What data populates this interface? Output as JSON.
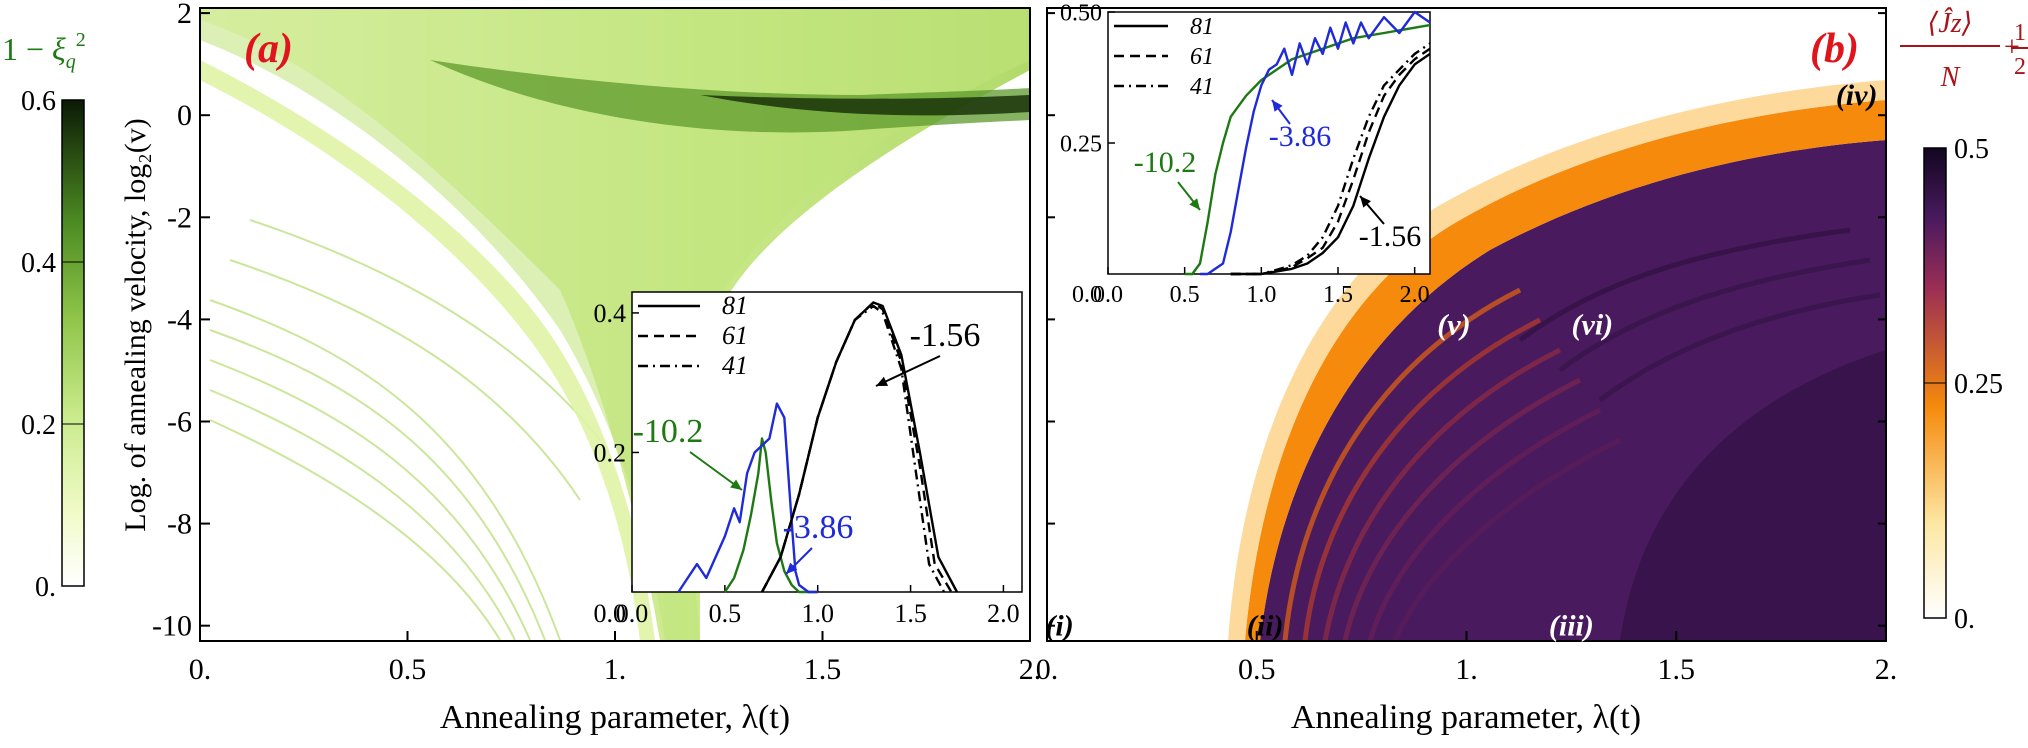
{
  "colors": {
    "green_dark": "#0b1a05",
    "green_mid": "#7ab43a",
    "green_light": "#eef9c6",
    "inferno_dark": "#1b0a2e",
    "inferno_purple": "#4a1a5e",
    "inferno_orange": "#f58a0c",
    "inferno_light": "#fff5d6",
    "panel_label": "#e0141c",
    "blue_curve": "#1f2ad8",
    "green_curve": "#1d7a12",
    "dark_red_label": "#a8141a"
  },
  "chart_data": [
    {
      "panel": "a",
      "type": "heatmap",
      "panel_label": "(a)",
      "xlabel": "Annealing parameter, λ(t)",
      "ylabel": "Log. of annealing velocity, log₂(v)",
      "xlim": [
        0,
        2
      ],
      "ylim": [
        -10.3,
        2.1
      ],
      "x_ticks": [
        0,
        0.5,
        1,
        1.5,
        2
      ],
      "x_tick_labels": [
        "0.",
        "0.5",
        "1.",
        "1.5",
        "2."
      ],
      "y_ticks": [
        -10,
        -8,
        -6,
        -4,
        -2,
        0,
        2
      ],
      "y_tick_labels": [
        "-10",
        "-8",
        "-6",
        "-4",
        "-2",
        "0",
        "2"
      ],
      "colorbar": {
        "title_prefix": "1 − ",
        "title_symbol": "ξ",
        "title_sub": "q",
        "title_sup": "2",
        "range": [
          0,
          0.6
        ],
        "tick_values": [
          0,
          0.2,
          0.4,
          0.6
        ],
        "tick_labels": [
          "0.",
          "0.2",
          "0.4",
          "0.6"
        ]
      },
      "inset": {
        "type": "line",
        "xlim": [
          0,
          2.1
        ],
        "ylim": [
          0,
          0.43
        ],
        "x_ticks": [
          0,
          0.5,
          1,
          1.5,
          2
        ],
        "x_tick_labels": [
          "0.0",
          "0.5",
          "1.0",
          "1.5",
          "2.0"
        ],
        "y_ticks": [
          0.2,
          0.4
        ],
        "y_tick_labels": [
          "0.2",
          "0.4"
        ],
        "legend": [
          {
            "label": "81",
            "dash": "solid"
          },
          {
            "label": "61",
            "dash": "dashed"
          },
          {
            "label": "41",
            "dash": "dashdot"
          }
        ],
        "annotations": [
          {
            "text": "-10.2",
            "color": "green"
          },
          {
            "text": "-3.86",
            "color": "blue"
          },
          {
            "text": "-1.56",
            "color": "black"
          }
        ],
        "series": [
          {
            "name": "-10.2",
            "color": "green",
            "x": [
              0.5,
              0.55,
              0.6,
              0.64,
              0.68,
              0.7,
              0.72,
              0.75,
              0.78,
              0.82,
              0.86,
              0.9,
              1.0
            ],
            "y": [
              0.0,
              0.02,
              0.06,
              0.11,
              0.17,
              0.22,
              0.2,
              0.13,
              0.07,
              0.03,
              0.01,
              0.0,
              0.0
            ]
          },
          {
            "name": "-3.86",
            "color": "blue",
            "x": [
              0.25,
              0.3,
              0.35,
              0.4,
              0.45,
              0.5,
              0.55,
              0.58,
              0.62,
              0.66,
              0.7,
              0.74,
              0.78,
              0.82,
              0.86,
              0.88,
              0.9,
              0.95,
              1.0
            ],
            "y": [
              0.0,
              0.02,
              0.04,
              0.02,
              0.05,
              0.08,
              0.12,
              0.1,
              0.17,
              0.2,
              0.21,
              0.22,
              0.27,
              0.25,
              0.1,
              0.03,
              0.01,
              0.0,
              0.0
            ]
          },
          {
            "name": "-1.56 (81)",
            "color": "black",
            "dash": "solid",
            "x": [
              0.7,
              0.8,
              0.9,
              1.0,
              1.1,
              1.2,
              1.3,
              1.35,
              1.45,
              1.55,
              1.65,
              1.75
            ],
            "y": [
              0.0,
              0.05,
              0.14,
              0.25,
              0.33,
              0.39,
              0.415,
              0.41,
              0.34,
              0.2,
              0.05,
              0.0
            ]
          },
          {
            "name": "-1.56 (61)",
            "color": "black",
            "dash": "dashed",
            "x": [
              0.7,
              0.8,
              0.9,
              1.0,
              1.1,
              1.2,
              1.3,
              1.35,
              1.45,
              1.55,
              1.63,
              1.72
            ],
            "y": [
              0.0,
              0.05,
              0.14,
              0.25,
              0.33,
              0.39,
              0.415,
              0.405,
              0.33,
              0.18,
              0.04,
              0.0
            ]
          },
          {
            "name": "-1.56 (41)",
            "color": "black",
            "dash": "dashdot",
            "x": [
              0.7,
              0.8,
              0.9,
              1.0,
              1.1,
              1.2,
              1.3,
              1.35,
              1.45,
              1.53,
              1.6,
              1.68
            ],
            "y": [
              0.0,
              0.05,
              0.14,
              0.25,
              0.33,
              0.39,
              0.41,
              0.4,
              0.32,
              0.17,
              0.04,
              0.0
            ]
          }
        ]
      }
    },
    {
      "panel": "b",
      "type": "heatmap",
      "panel_label": "(b)",
      "xlabel": "Annealing parameter, λ(t)",
      "xlim": [
        0,
        2
      ],
      "ylim": [
        -10.3,
        2.1
      ],
      "x_ticks": [
        0,
        0.5,
        1,
        1.5,
        2
      ],
      "x_tick_labels": [
        "0.",
        "0.5",
        "1.",
        "1.5",
        "2."
      ],
      "colorbar": {
        "title_num": "⟨Ĵz⟩",
        "title_den": "N",
        "title_plus": "+",
        "title_frac_num": "1",
        "title_frac_den": "2",
        "range": [
          0,
          0.5
        ],
        "tick_values": [
          0,
          0.25,
          0.5
        ],
        "tick_labels": [
          "0.",
          "0.25",
          "0.5"
        ]
      },
      "region_labels": [
        {
          "text": "(i)",
          "x": 0.03,
          "y": -10
        },
        {
          "text": "(ii)",
          "x": 0.52,
          "y": -10
        },
        {
          "text": "(iii)",
          "x": 1.25,
          "y": -10
        },
        {
          "text": "(iv)",
          "x": 1.93,
          "y": 0.4
        },
        {
          "text": "(v)",
          "x": 0.97,
          "y": -4.1
        },
        {
          "text": "(vi)",
          "x": 1.3,
          "y": -4.1
        }
      ],
      "inset": {
        "type": "line",
        "xlim": [
          0,
          2.1
        ],
        "ylim": [
          0,
          0.5
        ],
        "x_ticks": [
          0,
          0.5,
          1,
          1.5,
          2
        ],
        "x_tick_labels": [
          "0.0",
          "0.5",
          "1.0",
          "1.5",
          "2.0"
        ],
        "y_ticks": [
          0.25,
          0.5
        ],
        "y_tick_labels": [
          "0.25",
          "0.50"
        ],
        "legend": [
          {
            "label": "81",
            "dash": "solid"
          },
          {
            "label": "61",
            "dash": "dashed"
          },
          {
            "label": "41",
            "dash": "dashdot"
          }
        ],
        "annotations": [
          {
            "text": "-10.2",
            "color": "green"
          },
          {
            "text": "-3.86",
            "color": "blue"
          },
          {
            "text": "-1.56",
            "color": "black"
          }
        ],
        "series": [
          {
            "name": "-10.2",
            "color": "green",
            "x": [
              0.5,
              0.55,
              0.6,
              0.65,
              0.7,
              0.75,
              0.8,
              0.9,
              1.0,
              1.1,
              1.2,
              1.4,
              1.6,
              1.8,
              2.0,
              2.1
            ],
            "y": [
              0.0,
              0.0,
              0.02,
              0.1,
              0.19,
              0.25,
              0.3,
              0.34,
              0.37,
              0.39,
              0.41,
              0.43,
              0.45,
              0.46,
              0.47,
              0.475
            ]
          },
          {
            "name": "-3.86",
            "color": "blue",
            "x": [
              0.6,
              0.65,
              0.7,
              0.75,
              0.8,
              0.85,
              0.9,
              0.95,
              1.0,
              1.05,
              1.1,
              1.15,
              1.2,
              1.25,
              1.3,
              1.35,
              1.4,
              1.45,
              1.5,
              1.55,
              1.6,
              1.65,
              1.7,
              1.8,
              1.9,
              2.0,
              2.1
            ],
            "y": [
              0.0,
              0.0,
              0.01,
              0.02,
              0.08,
              0.16,
              0.24,
              0.31,
              0.36,
              0.39,
              0.4,
              0.43,
              0.38,
              0.44,
              0.4,
              0.45,
              0.42,
              0.47,
              0.43,
              0.48,
              0.44,
              0.48,
              0.45,
              0.49,
              0.46,
              0.5,
              0.48
            ]
          },
          {
            "name": "-1.56 (81)",
            "color": "black",
            "dash": "solid",
            "x": [
              0.8,
              1.0,
              1.1,
              1.2,
              1.3,
              1.4,
              1.5,
              1.6,
              1.7,
              1.8,
              1.9,
              2.0,
              2.1
            ],
            "y": [
              0.0,
              0.0,
              0.005,
              0.01,
              0.02,
              0.04,
              0.07,
              0.13,
              0.22,
              0.3,
              0.36,
              0.4,
              0.42
            ]
          },
          {
            "name": "-1.56 (61)",
            "color": "black",
            "dash": "dashed",
            "x": [
              0.8,
              1.0,
              1.1,
              1.2,
              1.3,
              1.4,
              1.5,
              1.6,
              1.7,
              1.8,
              1.9,
              2.0,
              2.1
            ],
            "y": [
              0.0,
              0.0,
              0.006,
              0.013,
              0.03,
              0.05,
              0.1,
              0.18,
              0.27,
              0.34,
              0.38,
              0.41,
              0.43
            ]
          },
          {
            "name": "-1.56 (41)",
            "color": "black",
            "dash": "dashdot",
            "x": [
              0.8,
              1.0,
              1.1,
              1.2,
              1.3,
              1.4,
              1.5,
              1.6,
              1.7,
              1.8,
              1.9,
              2.0,
              2.1
            ],
            "y": [
              0.0,
              0.0,
              0.008,
              0.017,
              0.035,
              0.07,
              0.13,
              0.22,
              0.3,
              0.36,
              0.39,
              0.42,
              0.44
            ]
          }
        ]
      }
    }
  ]
}
